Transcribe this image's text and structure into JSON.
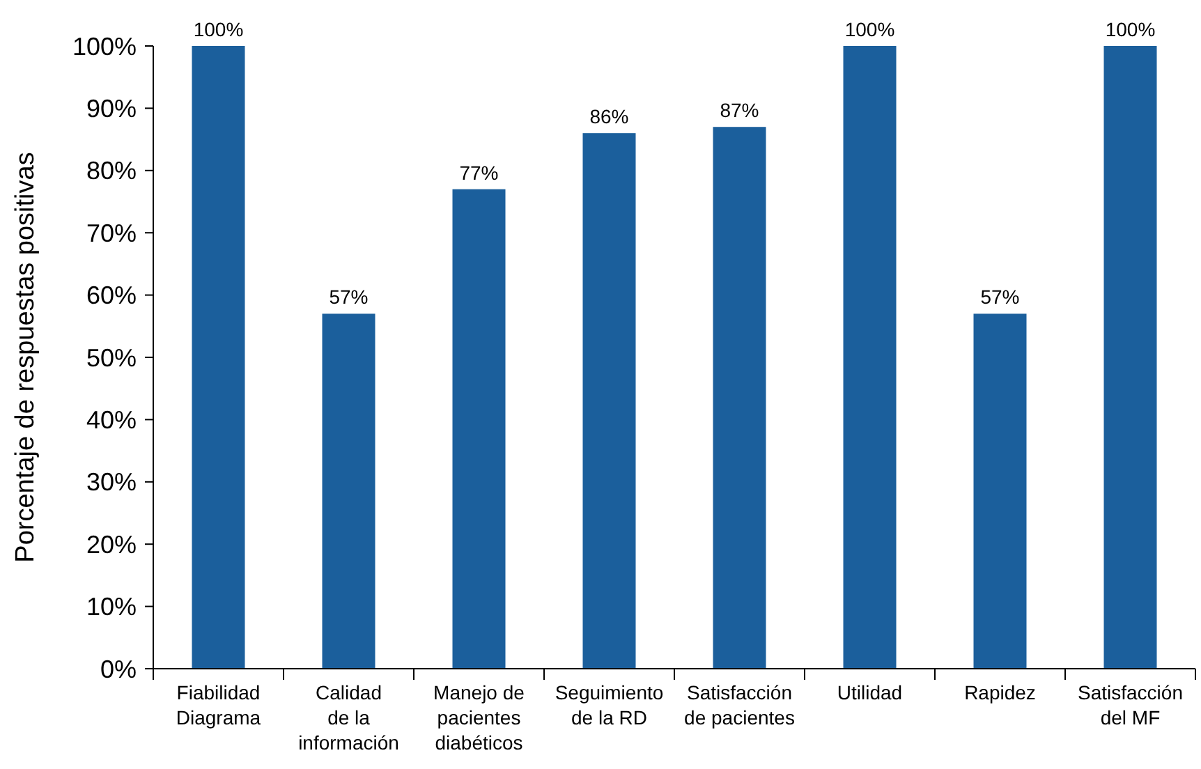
{
  "chart_data": {
    "type": "bar",
    "ylabel": "Porcentaje de respuestas positivas",
    "categories": [
      "Fiabilidad\nDiagrama",
      "Calidad\nde la\ninformación",
      "Manejo de\npacientes\ndiabéticos",
      "Seguimiento\nde la RD",
      "Satisfacción\nde pacientes",
      "Utilidad",
      "Rapidez",
      "Satisfacción\ndel MF"
    ],
    "values": [
      100,
      57,
      77,
      86,
      87,
      100,
      57,
      100
    ],
    "value_labels": [
      "100%",
      "57%",
      "77%",
      "86%",
      "87%",
      "100%",
      "57%",
      "100%"
    ],
    "color": "#1b5f9c",
    "ylim": [
      0,
      100
    ],
    "yticks": [
      {
        "value": 0,
        "label": "0%"
      },
      {
        "value": 10,
        "label": "10%"
      },
      {
        "value": 20,
        "label": "20%"
      },
      {
        "value": 30,
        "label": "30%"
      },
      {
        "value": 40,
        "label": "40%"
      },
      {
        "value": 50,
        "label": "50%"
      },
      {
        "value": 60,
        "label": "60%"
      },
      {
        "value": 70,
        "label": "70%"
      },
      {
        "value": 80,
        "label": "80%"
      },
      {
        "value": 90,
        "label": "90%"
      },
      {
        "value": 100,
        "label": "100%"
      }
    ],
    "grid": false
  }
}
